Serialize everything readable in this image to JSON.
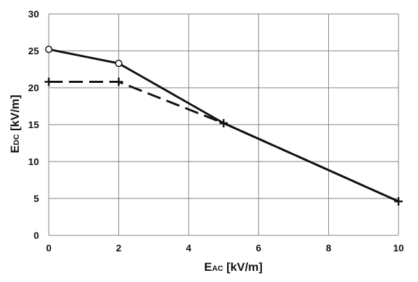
{
  "chart_data": {
    "type": "line",
    "xlabel": {
      "main_prefix": "E",
      "subscript": "AC",
      "suffix": " [kV/m]"
    },
    "ylabel": {
      "main_prefix": "E",
      "subscript": "DC",
      "suffix": " [kV/m]"
    },
    "xlim": [
      0,
      10
    ],
    "ylim": [
      0,
      30
    ],
    "x_ticks": [
      0,
      2,
      4,
      6,
      8,
      10
    ],
    "y_ticks": [
      0,
      5,
      10,
      15,
      20,
      25,
      30
    ],
    "grid": true,
    "series": [
      {
        "style": "solid",
        "marker": "circle-open",
        "x": [
          0,
          2,
          5,
          10
        ],
        "y": [
          25.2,
          23.3,
          15.2,
          4.6
        ],
        "marker_indices": [
          0,
          1
        ]
      },
      {
        "style": "dashed",
        "marker": "plus",
        "x": [
          0,
          2,
          5,
          10
        ],
        "y": [
          20.8,
          20.8,
          15.2,
          4.6
        ],
        "marker_indices": [
          0,
          1,
          2,
          3
        ]
      }
    ],
    "colors": {
      "line": "#111111",
      "grid": "#808080",
      "marker_fill": "#ffffff"
    }
  }
}
